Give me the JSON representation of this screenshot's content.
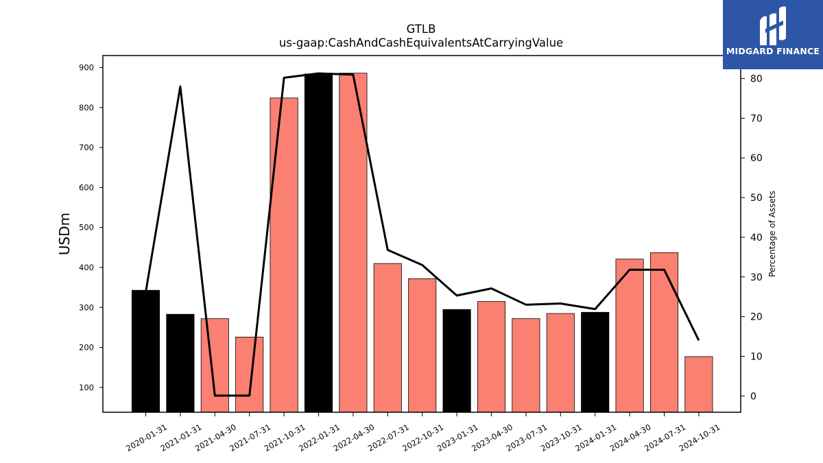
{
  "chart_data": {
    "type": "bar",
    "title": "GTLB",
    "subtitle": "us-gaap:CashAndCashEquivalentsAtCarryingValue",
    "ylabel": "USDm",
    "y2label": "Percentage of Assets",
    "categories": [
      "2020-01-31",
      "2021-01-31",
      "2021-04-30",
      "2021-07-31",
      "2021-10-31",
      "2022-01-31",
      "2022-04-30",
      "2022-07-31",
      "2022-10-31",
      "2023-01-31",
      "2023-04-30",
      "2023-07-31",
      "2023-10-31",
      "2024-01-31",
      "2024-04-30",
      "2024-07-31",
      "2024-10-31"
    ],
    "series": [
      {
        "type": "bar",
        "values": [
          343,
          283,
          272,
          226,
          824,
          884,
          886,
          410,
          372,
          295,
          315,
          272,
          285,
          288,
          421,
          437,
          177
        ],
        "colors": [
          "#000000",
          "#000000",
          "#fa8072",
          "#fa8072",
          "#fa8072",
          "#000000",
          "#fa8072",
          "#fa8072",
          "#fa8072",
          "#000000",
          "#fa8072",
          "#fa8072",
          "#fa8072",
          "#000000",
          "#fa8072",
          "#fa8072",
          "#fa8072"
        ]
      },
      {
        "type": "line",
        "axis": "right",
        "values": [
          26.2,
          78.0,
          0.1,
          0.1,
          80.2,
          81.3,
          81.0,
          36.8,
          33.0,
          25.3,
          27.1,
          23.0,
          23.3,
          21.9,
          31.8,
          31.8,
          14.0
        ],
        "color": "#000000"
      }
    ],
    "ylim": [
      38,
      930
    ],
    "yticks": [
      100,
      200,
      300,
      400,
      500,
      600,
      700,
      800,
      900
    ],
    "y2lim": [
      -4.1,
      85.8
    ],
    "y2ticks": [
      0,
      10,
      20,
      30,
      40,
      50,
      60,
      70,
      80
    ],
    "grid": false,
    "legend": "none"
  },
  "logo": {
    "text": "MIDGARD FINANCE",
    "background": "#2e56a6"
  }
}
